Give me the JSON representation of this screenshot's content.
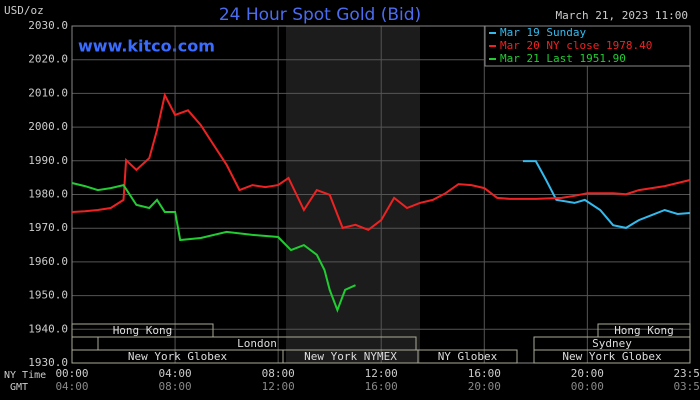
{
  "chart_data": {
    "type": "line",
    "title": "24 Hour Spot Gold (Bid)",
    "timestamp": "March 21, 2023 11:00",
    "watermark": "www.kitco.com",
    "y_unit_label": "USD/oz",
    "x_row_labels": [
      "NY Time",
      "GMT"
    ],
    "xlim": [
      0,
      23.983
    ],
    "xticks": [
      {
        "value": 0,
        "label": "00:00"
      },
      {
        "value": 4,
        "label": "04:00"
      },
      {
        "value": 8,
        "label": "08:00"
      },
      {
        "value": 12,
        "label": "12:00"
      },
      {
        "value": 16,
        "label": "16:00"
      },
      {
        "value": 20,
        "label": "20:00"
      },
      {
        "value": 23.983,
        "label": "23:59"
      }
    ],
    "xticks_gmt": [
      "04:00",
      "08:00",
      "12:00",
      "16:00",
      "20:00",
      "00:00",
      "03:59"
    ],
    "ylim": [
      1930,
      2030
    ],
    "yticks": [
      {
        "value": 1930,
        "label": "1930.0"
      },
      {
        "value": 1940,
        "label": "1940.0"
      },
      {
        "value": 1950,
        "label": "1950.0"
      },
      {
        "value": 1960,
        "label": "1960.0"
      },
      {
        "value": 1970,
        "label": "1970.0"
      },
      {
        "value": 1980,
        "label": "1980.0"
      },
      {
        "value": 1990,
        "label": "1990.0"
      },
      {
        "value": 2000,
        "label": "2000.0"
      },
      {
        "value": 2010,
        "label": "2010.0"
      },
      {
        "value": 2020,
        "label": "2020.0"
      },
      {
        "value": 2030,
        "label": "2030.0"
      }
    ],
    "grid": true,
    "legend": "top-right",
    "sessions": [
      "Hong Kong",
      "London",
      "New York Globex",
      "New York NYMEX",
      "NY Globex",
      "Hong Kong",
      "Sydney",
      "New York Globex"
    ],
    "series": [
      {
        "name": "Mar 19 Sunday",
        "color": "#33bbee",
        "x": [
          17.5,
          18,
          18.4,
          18.8,
          19.5,
          19.9,
          20.5,
          21,
          21.5,
          22,
          22.5,
          23,
          23.5,
          23.983
        ],
        "values": [
          1989.9,
          1989.9,
          1984.3,
          1978.4,
          1977.5,
          1978.4,
          1975.4,
          1970.9,
          1970.1,
          1972.4,
          1973.9,
          1975.4,
          1974.2,
          1974.5
        ]
      },
      {
        "name": "Mar 20 NY close 1978.40",
        "color": "#ee2222",
        "x": [
          0,
          0.5,
          1,
          1.5,
          2,
          2.1,
          2.5,
          3,
          3.3,
          3.6,
          4,
          4.5,
          5,
          5.5,
          6,
          6.5,
          7,
          7.5,
          8,
          8.4,
          9,
          9.5,
          10,
          10.5,
          11,
          11.5,
          12,
          12.5,
          13,
          13.5,
          14,
          14.5,
          15,
          15.5,
          16,
          16.5,
          17,
          18,
          19,
          19.5,
          20,
          21,
          21.5,
          22,
          23,
          23.983
        ],
        "values": [
          1974.8,
          1975,
          1975.4,
          1976,
          1978.4,
          1990.2,
          1987.3,
          1990.8,
          1999.1,
          2009.5,
          2003.6,
          2005,
          2000.6,
          1994.7,
          1988.8,
          1981.3,
          1982.8,
          1982.2,
          1982.8,
          1984.9,
          1975.4,
          1981.3,
          1979.9,
          1970.1,
          1971,
          1969.5,
          1972.4,
          1979,
          1976,
          1977.5,
          1978.4,
          1980.4,
          1983.1,
          1982.8,
          1981.9,
          1979,
          1978.7,
          1978.7,
          1979,
          1979.6,
          1980.4,
          1980.4,
          1980.1,
          1981.3,
          1982.5,
          1984.3
        ]
      },
      {
        "name": "Mar 21 Last 1951.90",
        "color": "#22cc33",
        "x": [
          0,
          0.5,
          1,
          1.5,
          2,
          2.5,
          3,
          3.3,
          3.6,
          4,
          4.2,
          5,
          6,
          7,
          8,
          8.5,
          9,
          9.5,
          9.8,
          10,
          10.3,
          10.6,
          11
        ],
        "values": [
          1983.4,
          1982.5,
          1981.3,
          1981.9,
          1982.8,
          1976.9,
          1976,
          1978.4,
          1974.8,
          1974.8,
          1966.5,
          1967.1,
          1968.9,
          1968,
          1967.4,
          1963.5,
          1965,
          1962.1,
          1957.6,
          1951.7,
          1945.7,
          1951.7,
          1953.1
        ]
      }
    ]
  }
}
